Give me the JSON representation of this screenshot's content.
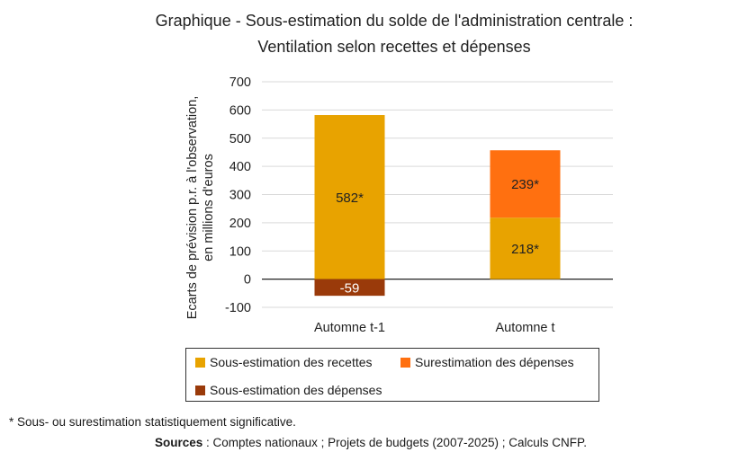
{
  "chart_data": {
    "type": "bar",
    "stacked": true,
    "title": "Graphique - Sous-estimation du solde de l'administration centrale :",
    "subtitle": "Ventilation selon recettes et dépenses",
    "ylabel_line1": "Ecarts de prévision p.r. à l'observation,",
    "ylabel_line2": "en millions  d'euros",
    "xlabel": "",
    "ylim": [
      -100,
      700
    ],
    "yticks": [
      -100,
      0,
      100,
      200,
      300,
      400,
      500,
      600,
      700
    ],
    "grid": true,
    "categories": [
      "Automne t-1",
      "Automne t"
    ],
    "series": [
      {
        "name": "Sous-estimation des recettes",
        "color": "#E8A300",
        "values": [
          582,
          218
        ],
        "labels": [
          "582*",
          "218*"
        ]
      },
      {
        "name": "Surestimation des dépenses",
        "color": "#FF7010",
        "values": [
          0,
          239
        ],
        "labels": [
          "",
          "239*"
        ]
      },
      {
        "name": "Sous-estimation des dépenses",
        "color": "#9A3A0A",
        "values": [
          -59,
          0
        ],
        "labels": [
          "-59",
          ""
        ]
      }
    ],
    "legend_position": "bottom"
  },
  "footnote": "* Sous- ou surestimation statistiquement significative.",
  "sources_label": "Sources",
  "sources_text": " : Comptes nationaux ; Projets de budgets (2007-2025) ; Calculs CNFP."
}
